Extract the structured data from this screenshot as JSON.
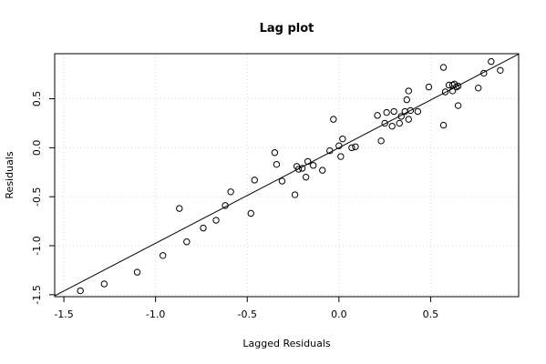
{
  "chart_data": {
    "type": "scatter",
    "title": "Lag plot",
    "xlabel": "Lagged Residuals",
    "ylabel": "Residuals",
    "xlim": [
      -1.55,
      0.98
    ],
    "ylim": [
      -1.52,
      0.96
    ],
    "x_ticks": [
      -1.5,
      -1.0,
      -0.5,
      0.0,
      0.5
    ],
    "x_tick_labels": [
      "-1.5",
      "-1.0",
      "-0.5",
      "0.0",
      "0.5"
    ],
    "y_ticks": [
      -1.5,
      -1.0,
      -0.5,
      0.0,
      0.5
    ],
    "y_tick_labels": [
      "-1.5",
      "-1.0",
      "-0.5",
      "0.0",
      "0.5"
    ],
    "grid": true,
    "points": [
      {
        "x": -1.41,
        "y": -1.46
      },
      {
        "x": -1.28,
        "y": -1.39
      },
      {
        "x": -1.1,
        "y": -1.27
      },
      {
        "x": -0.96,
        "y": -1.1
      },
      {
        "x": -0.87,
        "y": -0.62
      },
      {
        "x": -0.83,
        "y": -0.96
      },
      {
        "x": -0.74,
        "y": -0.82
      },
      {
        "x": -0.67,
        "y": -0.74
      },
      {
        "x": -0.62,
        "y": -0.59
      },
      {
        "x": -0.59,
        "y": -0.45
      },
      {
        "x": -0.48,
        "y": -0.67
      },
      {
        "x": -0.46,
        "y": -0.33
      },
      {
        "x": -0.35,
        "y": -0.05
      },
      {
        "x": -0.34,
        "y": -0.17
      },
      {
        "x": -0.31,
        "y": -0.34
      },
      {
        "x": -0.24,
        "y": -0.48
      },
      {
        "x": -0.23,
        "y": -0.19
      },
      {
        "x": -0.22,
        "y": -0.22
      },
      {
        "x": -0.2,
        "y": -0.21
      },
      {
        "x": -0.18,
        "y": -0.3
      },
      {
        "x": -0.17,
        "y": -0.14
      },
      {
        "x": -0.14,
        "y": -0.18
      },
      {
        "x": -0.09,
        "y": -0.23
      },
      {
        "x": -0.05,
        "y": -0.03
      },
      {
        "x": -0.03,
        "y": 0.29
      },
      {
        "x": 0.0,
        "y": 0.02
      },
      {
        "x": 0.01,
        "y": -0.09
      },
      {
        "x": 0.02,
        "y": 0.09
      },
      {
        "x": 0.07,
        "y": 0.0
      },
      {
        "x": 0.09,
        "y": 0.01
      },
      {
        "x": 0.21,
        "y": 0.33
      },
      {
        "x": 0.23,
        "y": 0.07
      },
      {
        "x": 0.25,
        "y": 0.25
      },
      {
        "x": 0.26,
        "y": 0.36
      },
      {
        "x": 0.29,
        "y": 0.22
      },
      {
        "x": 0.3,
        "y": 0.37
      },
      {
        "x": 0.33,
        "y": 0.25
      },
      {
        "x": 0.34,
        "y": 0.32
      },
      {
        "x": 0.36,
        "y": 0.37
      },
      {
        "x": 0.37,
        "y": 0.49
      },
      {
        "x": 0.38,
        "y": 0.58
      },
      {
        "x": 0.38,
        "y": 0.29
      },
      {
        "x": 0.39,
        "y": 0.38
      },
      {
        "x": 0.43,
        "y": 0.37
      },
      {
        "x": 0.49,
        "y": 0.62
      },
      {
        "x": 0.57,
        "y": 0.82
      },
      {
        "x": 0.57,
        "y": 0.23
      },
      {
        "x": 0.58,
        "y": 0.57
      },
      {
        "x": 0.6,
        "y": 0.64
      },
      {
        "x": 0.62,
        "y": 0.58
      },
      {
        "x": 0.62,
        "y": 0.64
      },
      {
        "x": 0.63,
        "y": 0.65
      },
      {
        "x": 0.64,
        "y": 0.62
      },
      {
        "x": 0.65,
        "y": 0.43
      },
      {
        "x": 0.65,
        "y": 0.63
      },
      {
        "x": 0.76,
        "y": 0.61
      },
      {
        "x": 0.79,
        "y": 0.76
      },
      {
        "x": 0.83,
        "y": 0.88
      },
      {
        "x": 0.88,
        "y": 0.79
      }
    ],
    "fit_line": {
      "slope": 0.975,
      "intercept": 0.0
    },
    "colors": {
      "points": "#000000",
      "line": "#000000",
      "grid": "#d9d9d9",
      "background": "#ffffff"
    }
  }
}
